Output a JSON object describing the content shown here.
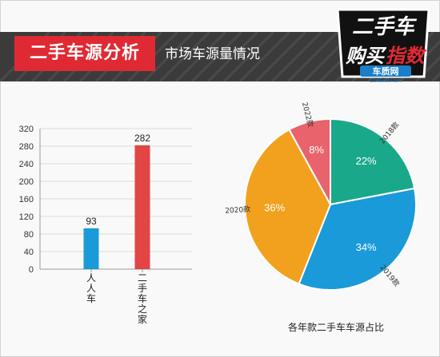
{
  "header": {
    "title": "二手车源分析",
    "subtitle": "市场车源量情况",
    "logo_text": [
      "二手车",
      "购买",
      "指数"
    ],
    "logo_brand": "车质网",
    "logo_url": "12365auto.com"
  },
  "colors": {
    "header_bg": "#3b3b3b",
    "accent_red": "#e02a33",
    "bar_blue": "#1a9ad8",
    "bar_red": "#e34444",
    "pie_green": "#19a88a",
    "pie_blue": "#1a9ad8",
    "pie_orange": "#f2a11e",
    "pie_pink": "#e8636b"
  },
  "chart_data": [
    {
      "type": "bar",
      "categories": [
        "人人车",
        "二手车之家"
      ],
      "values": [
        93,
        282
      ],
      "data_labels": [
        "93",
        "282"
      ],
      "yticks": [
        0,
        40,
        80,
        120,
        160,
        200,
        240,
        280,
        320
      ],
      "ylim": [
        0,
        320
      ],
      "grid": true,
      "colors": [
        "#1a9ad8",
        "#e34444"
      ]
    },
    {
      "type": "pie",
      "title": "各年款二手车车源占比",
      "slices": [
        {
          "label": "2018款",
          "value": 22,
          "text": "22%",
          "color": "#19a88a"
        },
        {
          "label": "2019款",
          "value": 34,
          "text": "34%",
          "color": "#1a9ad8"
        },
        {
          "label": "2020款",
          "value": 36,
          "text": "36%",
          "color": "#f2a11e"
        },
        {
          "label": "2022款",
          "value": 8,
          "text": "8%",
          "color": "#e8636b"
        }
      ]
    }
  ]
}
